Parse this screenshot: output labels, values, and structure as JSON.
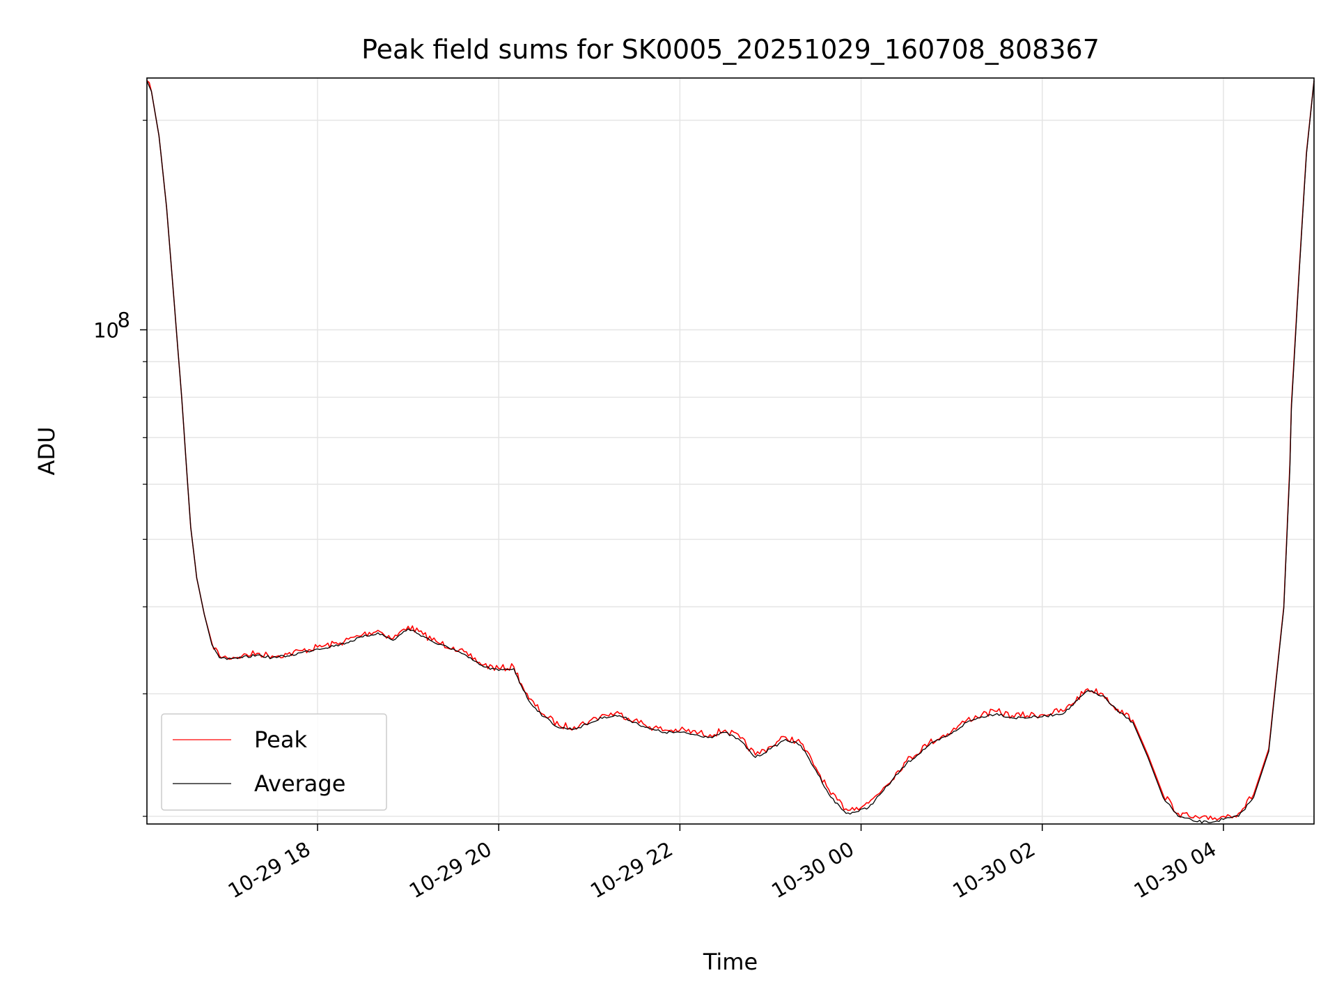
{
  "chart_data": {
    "type": "line",
    "title": "Peak field sums for SK0005_20251029_160708_808367",
    "xlabel": "Time",
    "ylabel": "ADU",
    "yscale": "log",
    "grid": true,
    "legend_position": "lower-left",
    "xlim": [
      "2025-10-29 16:07",
      "2025-10-30 05:00"
    ],
    "ylim": [
      19500000,
      230000000
    ],
    "x_ticks": [
      {
        "value": "2025-10-29 18:00",
        "label": "10-29 18"
      },
      {
        "value": "2025-10-29 20:00",
        "label": "10-29 20"
      },
      {
        "value": "2025-10-29 22:00",
        "label": "10-29 22"
      },
      {
        "value": "2025-10-30 00:00",
        "label": "10-30 00"
      },
      {
        "value": "2025-10-30 02:00",
        "label": "10-30 02"
      },
      {
        "value": "2025-10-30 04:00",
        "label": "10-30 04"
      }
    ],
    "y_major_ticks": [
      {
        "value": 100000000,
        "base": "10",
        "exponent": "8"
      }
    ],
    "y_minor_ticks": [
      20000000,
      30000000,
      40000000,
      50000000,
      60000000,
      70000000,
      80000000,
      90000000,
      200000000
    ],
    "series": [
      {
        "name": "Peak",
        "color": "#ff0000",
        "x": [
          "2025-10-29 16:07",
          "2025-10-29 16:10",
          "2025-10-29 16:15",
          "2025-10-29 16:20",
          "2025-10-29 16:25",
          "2025-10-29 16:30",
          "2025-10-29 16:34",
          "2025-10-29 16:36",
          "2025-10-29 16:40",
          "2025-10-29 16:45",
          "2025-10-29 16:50",
          "2025-10-29 16:55",
          "2025-10-29 17:00",
          "2025-10-29 17:10",
          "2025-10-29 17:20",
          "2025-10-29 17:30",
          "2025-10-29 17:40",
          "2025-10-29 17:50",
          "2025-10-29 18:00",
          "2025-10-29 18:15",
          "2025-10-29 18:30",
          "2025-10-29 18:40",
          "2025-10-29 18:50",
          "2025-10-29 19:00",
          "2025-10-29 19:10",
          "2025-10-29 19:20",
          "2025-10-29 19:30",
          "2025-10-29 19:40",
          "2025-10-29 19:50",
          "2025-10-29 20:00",
          "2025-10-29 20:10",
          "2025-10-29 20:15",
          "2025-10-29 20:20",
          "2025-10-29 20:30",
          "2025-10-29 20:40",
          "2025-10-29 20:50",
          "2025-10-29 21:00",
          "2025-10-29 21:10",
          "2025-10-29 21:20",
          "2025-10-29 21:30",
          "2025-10-29 21:40",
          "2025-10-29 21:50",
          "2025-10-29 22:00",
          "2025-10-29 22:20",
          "2025-10-29 22:30",
          "2025-10-29 22:40",
          "2025-10-29 22:50",
          "2025-10-29 23:00",
          "2025-10-29 23:10",
          "2025-10-29 23:20",
          "2025-10-29 23:30",
          "2025-10-29 23:40",
          "2025-10-29 23:50",
          "2025-10-29 23:57",
          "2025-10-30 00:05",
          "2025-10-30 00:15",
          "2025-10-30 00:30",
          "2025-10-30 00:45",
          "2025-10-30 01:00",
          "2025-10-30 01:10",
          "2025-10-30 01:20",
          "2025-10-30 01:30",
          "2025-10-30 01:40",
          "2025-10-30 02:00",
          "2025-10-30 02:15",
          "2025-10-30 02:30",
          "2025-10-30 02:40",
          "2025-10-30 02:50",
          "2025-10-30 03:00",
          "2025-10-30 03:10",
          "2025-10-30 03:20",
          "2025-10-30 03:30",
          "2025-10-30 03:40",
          "2025-10-30 03:50",
          "2025-10-30 04:00",
          "2025-10-30 04:10",
          "2025-10-30 04:20",
          "2025-10-30 04:30",
          "2025-10-30 04:40",
          "2025-10-30 04:44",
          "2025-10-30 04:45",
          "2025-10-30 04:50",
          "2025-10-30 04:55",
          "2025-10-30 05:00"
        ],
        "y": [
          228000000,
          220000000,
          190000000,
          150000000,
          110000000,
          80000000,
          60000000,
          52000000,
          44000000,
          39000000,
          35500000,
          34000000,
          33800000,
          34000000,
          34300000,
          34000000,
          34200000,
          34600000,
          35000000,
          35500000,
          36500000,
          37000000,
          36000000,
          37500000,
          36500000,
          35500000,
          35000000,
          34000000,
          33000000,
          32600000,
          32800000,
          31000000,
          29500000,
          28000000,
          27000000,
          26900000,
          27400000,
          28000000,
          28100000,
          27500000,
          26900000,
          26600000,
          26600000,
          26200000,
          26600000,
          25900000,
          24500000,
          25200000,
          26000000,
          25500000,
          23500000,
          21500000,
          20500000,
          20600000,
          20900000,
          22000000,
          24000000,
          25500000,
          26500000,
          27500000,
          28000000,
          28300000,
          27900000,
          28000000,
          28400000,
          30500000,
          30000000,
          28500000,
          27500000,
          24500000,
          21500000,
          20200000,
          19900000,
          19800000,
          20000000,
          20200000,
          21500000,
          25000000,
          40000000,
          64000000,
          78000000,
          120000000,
          180000000,
          228000000
        ]
      },
      {
        "name": "Average",
        "color": "#000000",
        "x": [
          "2025-10-29 16:07",
          "2025-10-29 16:10",
          "2025-10-29 16:15",
          "2025-10-29 16:20",
          "2025-10-29 16:25",
          "2025-10-29 16:30",
          "2025-10-29 16:34",
          "2025-10-29 16:36",
          "2025-10-29 16:40",
          "2025-10-29 16:45",
          "2025-10-29 16:50",
          "2025-10-29 16:55",
          "2025-10-29 17:00",
          "2025-10-29 17:10",
          "2025-10-29 17:20",
          "2025-10-29 17:30",
          "2025-10-29 17:40",
          "2025-10-29 17:50",
          "2025-10-29 18:00",
          "2025-10-29 18:15",
          "2025-10-29 18:30",
          "2025-10-29 18:40",
          "2025-10-29 18:50",
          "2025-10-29 19:00",
          "2025-10-29 19:10",
          "2025-10-29 19:20",
          "2025-10-29 19:30",
          "2025-10-29 19:40",
          "2025-10-29 19:50",
          "2025-10-29 20:00",
          "2025-10-29 20:10",
          "2025-10-29 20:15",
          "2025-10-29 20:20",
          "2025-10-29 20:30",
          "2025-10-29 20:40",
          "2025-10-29 20:50",
          "2025-10-29 21:00",
          "2025-10-29 21:10",
          "2025-10-29 21:20",
          "2025-10-29 21:30",
          "2025-10-29 21:40",
          "2025-10-29 21:50",
          "2025-10-29 22:00",
          "2025-10-29 22:20",
          "2025-10-29 22:30",
          "2025-10-29 22:40",
          "2025-10-29 22:50",
          "2025-10-29 23:00",
          "2025-10-29 23:10",
          "2025-10-29 23:20",
          "2025-10-29 23:30",
          "2025-10-29 23:40",
          "2025-10-29 23:50",
          "2025-10-29 23:57",
          "2025-10-30 00:05",
          "2025-10-30 00:15",
          "2025-10-30 00:30",
          "2025-10-30 00:45",
          "2025-10-30 01:00",
          "2025-10-30 01:10",
          "2025-10-30 01:20",
          "2025-10-30 01:30",
          "2025-10-30 01:40",
          "2025-10-30 02:00",
          "2025-10-30 02:15",
          "2025-10-30 02:30",
          "2025-10-30 02:40",
          "2025-10-30 02:50",
          "2025-10-30 03:00",
          "2025-10-30 03:10",
          "2025-10-30 03:20",
          "2025-10-30 03:30",
          "2025-10-30 03:40",
          "2025-10-30 03:50",
          "2025-10-30 04:00",
          "2025-10-30 04:10",
          "2025-10-30 04:20",
          "2025-10-30 04:30",
          "2025-10-30 04:40",
          "2025-10-30 04:44",
          "2025-10-30 04:45",
          "2025-10-30 04:50",
          "2025-10-30 04:55",
          "2025-10-30 05:00"
        ],
        "y": [
          228000000,
          220000000,
          190000000,
          150000000,
          110000000,
          80000000,
          60000000,
          52000000,
          44000000,
          39000000,
          35300000,
          33800000,
          33600000,
          33800000,
          34100000,
          33800000,
          34000000,
          34400000,
          34800000,
          35300000,
          36200000,
          36700000,
          35800000,
          37200000,
          36300000,
          35300000,
          34800000,
          33800000,
          32800000,
          32400000,
          32600000,
          30800000,
          29300000,
          27800000,
          26800000,
          26700000,
          27200000,
          27800000,
          27900000,
          27300000,
          26700000,
          26400000,
          26400000,
          26000000,
          26400000,
          25700000,
          24300000,
          25000000,
          25800000,
          25300000,
          23300000,
          21300000,
          20200000,
          20300000,
          20600000,
          21800000,
          23800000,
          25300000,
          26300000,
          27300000,
          27800000,
          28100000,
          27700000,
          27800000,
          28200000,
          30300000,
          29800000,
          28300000,
          27300000,
          24300000,
          21300000,
          20000000,
          19700000,
          19600000,
          19800000,
          20000000,
          21300000,
          24800000,
          39800000,
          63000000,
          77000000,
          119000000,
          179000000,
          228000000
        ]
      }
    ]
  }
}
